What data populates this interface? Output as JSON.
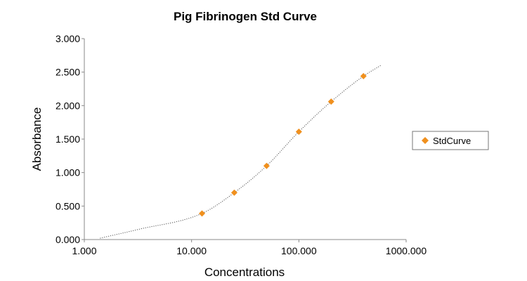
{
  "chart_data": {
    "type": "scatter",
    "title": "Pig Fibrinogen Std Curve",
    "xlabel": "Concentrations",
    "ylabel": "Absorbance",
    "x_scale": "log",
    "xlim": [
      1,
      1000
    ],
    "ylim": [
      0,
      3
    ],
    "x_ticks": [
      1,
      10,
      100,
      1000
    ],
    "x_tick_labels": [
      "1.000",
      "10.000",
      "100.000",
      "1000.000"
    ],
    "y_ticks": [
      0,
      0.5,
      1,
      1.5,
      2,
      2.5,
      3
    ],
    "y_tick_labels": [
      "0.000",
      "0.500",
      "1.000",
      "1.500",
      "2.000",
      "2.500",
      "3.000"
    ],
    "grid": false,
    "legend": {
      "position": "right",
      "entries": [
        "StdCurve"
      ]
    },
    "series": [
      {
        "name": "StdCurve",
        "color": "#f0901e",
        "marker": "diamond",
        "x": [
          12.5,
          25,
          50,
          100,
          200,
          400
        ],
        "y": [
          0.39,
          0.7,
          1.1,
          1.61,
          2.06,
          2.44
        ]
      }
    ],
    "fit_curve": {
      "style": "dotted",
      "color": "#555555",
      "x_range": [
        1.4,
        580
      ]
    }
  }
}
